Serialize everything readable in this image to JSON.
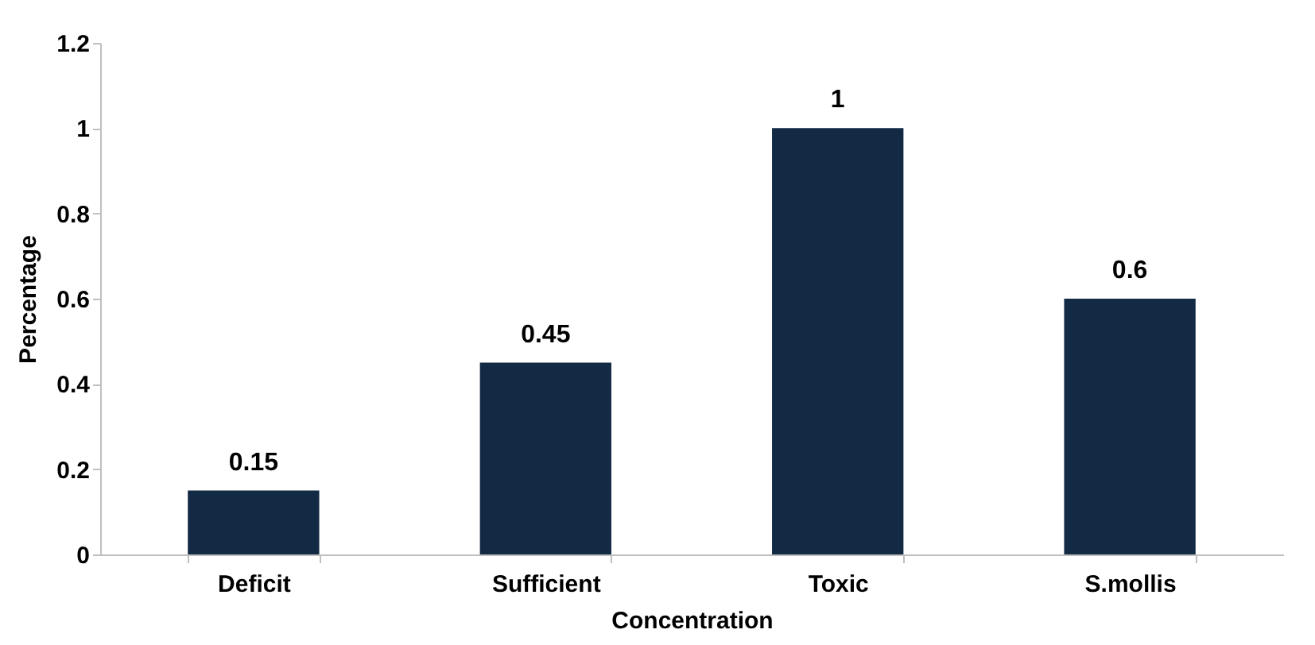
{
  "chart_data": {
    "type": "bar",
    "xlabel": "Concentration",
    "ylabel": "Percentage",
    "categories": [
      "Deficit",
      "Sufficient",
      "Toxic",
      "S.mollis"
    ],
    "values": [
      0.15,
      0.45,
      1,
      0.6
    ],
    "color": "#132a45",
    "ylim": [
      0,
      1.2
    ],
    "yticks": [
      0,
      0.2,
      0.4,
      0.6,
      0.8,
      1,
      1.2
    ],
    "data_labels": true,
    "grid": false
  }
}
